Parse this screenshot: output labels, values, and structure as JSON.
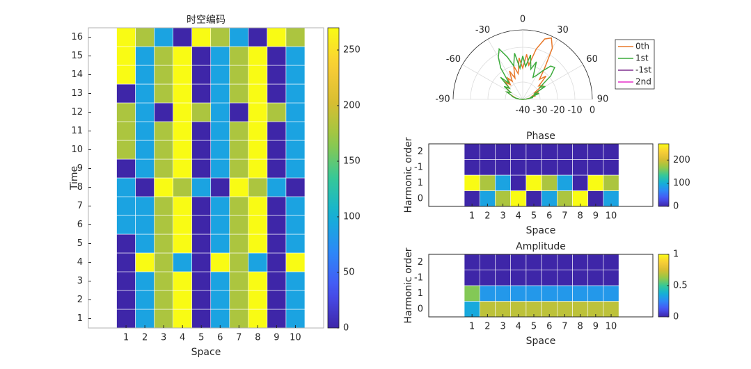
{
  "chart_data": [
    {
      "type": "heatmap",
      "title": "时空编码",
      "xlabel": "Space",
      "ylabel": "Time",
      "colormap": "parula",
      "x": [
        1,
        2,
        3,
        4,
        5,
        6,
        7,
        8,
        9,
        10
      ],
      "y": [
        1,
        2,
        3,
        4,
        5,
        6,
        7,
        8,
        9,
        10,
        11,
        12,
        13,
        14,
        15,
        16
      ],
      "z": [
        [
          0,
          90,
          180,
          270,
          0,
          90,
          180,
          270,
          0,
          90
        ],
        [
          0,
          90,
          180,
          270,
          0,
          90,
          180,
          270,
          0,
          90
        ],
        [
          0,
          90,
          180,
          270,
          0,
          90,
          180,
          270,
          0,
          90
        ],
        [
          0,
          270,
          180,
          90,
          0,
          270,
          180,
          90,
          0,
          270
        ],
        [
          0,
          90,
          180,
          270,
          0,
          90,
          180,
          270,
          0,
          90
        ],
        [
          90,
          90,
          180,
          270,
          0,
          90,
          180,
          270,
          0,
          90
        ],
        [
          90,
          90,
          180,
          270,
          0,
          90,
          180,
          270,
          0,
          90
        ],
        [
          90,
          0,
          270,
          180,
          90,
          0,
          270,
          180,
          90,
          0
        ],
        [
          0,
          90,
          180,
          270,
          0,
          90,
          180,
          270,
          0,
          90
        ],
        [
          180,
          90,
          180,
          270,
          0,
          90,
          180,
          270,
          0,
          90
        ],
        [
          180,
          90,
          180,
          270,
          0,
          90,
          180,
          270,
          0,
          90
        ],
        [
          180,
          90,
          0,
          270,
          180,
          90,
          0,
          270,
          180,
          90
        ],
        [
          0,
          90,
          180,
          270,
          0,
          90,
          180,
          270,
          0,
          90
        ],
        [
          270,
          90,
          180,
          270,
          0,
          90,
          180,
          270,
          0,
          90
        ],
        [
          270,
          90,
          180,
          270,
          0,
          90,
          180,
          270,
          0,
          90
        ],
        [
          270,
          180,
          90,
          0,
          270,
          180,
          90,
          0,
          270,
          180
        ]
      ],
      "xlim": [
        -1,
        11.5
      ],
      "ylim": [
        0.5,
        16.5
      ],
      "xticks": [
        1,
        2,
        3,
        4,
        5,
        6,
        7,
        8,
        9,
        10
      ],
      "yticks": [
        1,
        2,
        3,
        4,
        5,
        6,
        7,
        8,
        9,
        10,
        11,
        12,
        13,
        14,
        15,
        16
      ],
      "clim": [
        0,
        270
      ],
      "cticks": [
        0,
        50,
        100,
        150,
        200,
        250
      ]
    },
    {
      "type": "polar",
      "thetalim": [
        -90,
        90
      ],
      "thetaticks": [
        -90,
        -60,
        -30,
        0,
        30,
        60,
        90
      ],
      "rlim": [
        -40,
        0
      ],
      "rticks": [
        -40,
        -30,
        -20,
        -10,
        0
      ],
      "theta": [
        -90,
        -85,
        -80,
        -75,
        -70,
        -65,
        -60,
        -55,
        -50,
        -45,
        -40,
        -35,
        -30,
        -25,
        -20,
        -15,
        -10,
        -5,
        0,
        5,
        10,
        15,
        20,
        25,
        30,
        35,
        40,
        45,
        50,
        55,
        60,
        65,
        70,
        75,
        80,
        85,
        90
      ],
      "series": [
        {
          "name": "0th",
          "color": "#e8782a",
          "values": [
            -40,
            -38,
            -36,
            -35,
            -33,
            -30,
            -32,
            -28,
            -30,
            -26,
            -29,
            -25,
            -28,
            -22,
            -27,
            -20,
            -25,
            -16,
            -22,
            -14,
            -20,
            -10,
            -3,
            -1,
            -6,
            -18,
            -25,
            -21,
            -28,
            -26,
            -32,
            -30,
            -34,
            -33,
            -36,
            -38,
            -40
          ]
        },
        {
          "name": "1st",
          "color": "#3cab3c",
          "values": [
            -40,
            -38,
            -36,
            -34,
            -33,
            -30,
            -32,
            -27,
            -30,
            -22,
            -28,
            -18,
            -12,
            -8,
            -14,
            -20,
            -13,
            -22,
            -15,
            -21,
            -14,
            -22,
            -17,
            -26,
            -24,
            -20,
            -15,
            -14,
            -19,
            -28,
            -25,
            -33,
            -30,
            -35,
            -34,
            -38,
            -40
          ]
        },
        {
          "name": "-1st",
          "color": "#7e2f8e",
          "values": [
            -40,
            -40,
            -40,
            -40,
            -40,
            -40,
            -40,
            -40,
            -40,
            -40,
            -40,
            -40,
            -40,
            -40,
            -40,
            -40,
            -40,
            -40,
            -40,
            -40,
            -40,
            -40,
            -40,
            -40,
            -40,
            -40,
            -40,
            -40,
            -40,
            -40,
            -40,
            -40,
            -40,
            -40,
            -40,
            -40,
            -40
          ]
        },
        {
          "name": "2nd",
          "color": "#e62ec8",
          "values": [
            -40,
            -40,
            -40,
            -40,
            -40,
            -40,
            -40,
            -40,
            -40,
            -40,
            -40,
            -40,
            -40,
            -40,
            -40,
            -40,
            -40,
            -40,
            -40,
            -40,
            -40,
            -40,
            -40,
            -40,
            -40,
            -40,
            -40,
            -40,
            -40,
            -40,
            -40,
            -40,
            -40,
            -40,
            -40,
            -40,
            -40
          ]
        }
      ]
    },
    {
      "type": "heatmap",
      "title": "Phase",
      "xlabel": "Space",
      "ylabel": "Harmonic order",
      "colormap": "parula",
      "x": [
        1,
        2,
        3,
        4,
        5,
        6,
        7,
        8,
        9,
        10
      ],
      "y": [
        0,
        1,
        -1,
        2
      ],
      "z": [
        [
          0,
          90,
          180,
          270,
          0,
          90,
          180,
          270,
          0,
          90
        ],
        [
          270,
          180,
          90,
          0,
          270,
          180,
          90,
          0,
          270,
          180
        ],
        [
          0,
          0,
          0,
          0,
          0,
          0,
          0,
          0,
          0,
          0
        ],
        [
          0,
          0,
          0,
          0,
          0,
          0,
          0,
          0,
          0,
          0
        ]
      ],
      "xlim": [
        -1.8,
        12.7
      ],
      "xticks": [
        1,
        2,
        3,
        4,
        5,
        6,
        7,
        8,
        9,
        10
      ],
      "clim": [
        0,
        270
      ],
      "cticks": [
        0,
        100,
        200
      ]
    },
    {
      "type": "heatmap",
      "title": "Amplitude",
      "xlabel": "Space",
      "ylabel": "Harmonic order",
      "colormap": "parula",
      "x": [
        1,
        2,
        3,
        4,
        5,
        6,
        7,
        8,
        9,
        10
      ],
      "y": [
        0,
        1,
        -1,
        2
      ],
      "z": [
        [
          0.35,
          0.7,
          0.7,
          0.7,
          0.7,
          0.7,
          0.7,
          0.7,
          0.7,
          0.7
        ],
        [
          0.6,
          0.3,
          0.3,
          0.3,
          0.3,
          0.3,
          0.3,
          0.3,
          0.3,
          0.3
        ],
        [
          0,
          0,
          0,
          0,
          0,
          0,
          0,
          0,
          0,
          0
        ],
        [
          0,
          0,
          0,
          0,
          0,
          0,
          0,
          0,
          0,
          0
        ]
      ],
      "xlim": [
        -1.8,
        12.7
      ],
      "xticks": [
        1,
        2,
        3,
        4,
        5,
        6,
        7,
        8,
        9,
        10
      ],
      "clim": [
        0,
        1
      ],
      "cticks": [
        0,
        0.5,
        1
      ]
    }
  ]
}
